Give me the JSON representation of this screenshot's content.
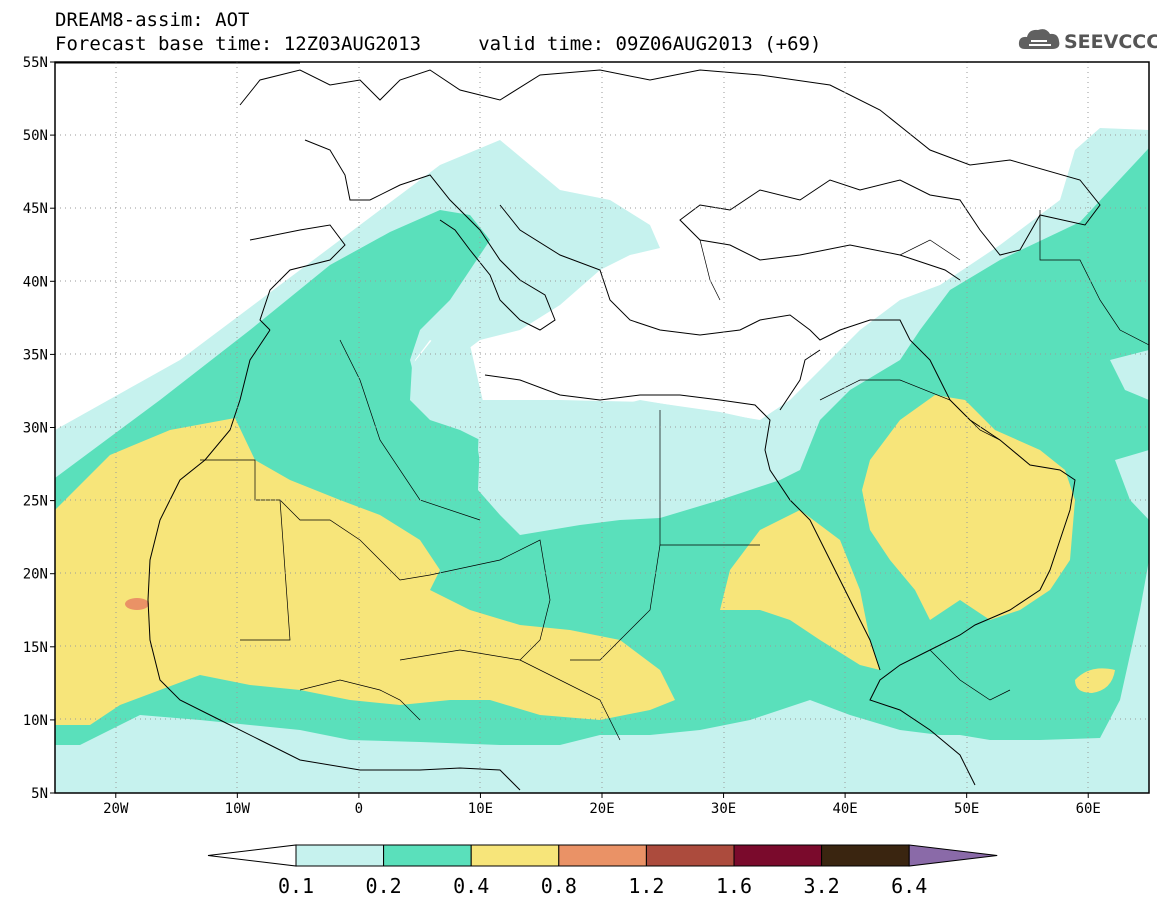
{
  "header": {
    "model_line": "DREAM8-assim: AOT",
    "time_line": "Forecast base time: 12Z03AUG2013     valid time: 09Z06AUG2013 (+69)"
  },
  "logo": {
    "text": "SEEVCCC",
    "icon": "cloud-icon"
  },
  "map": {
    "lat_labels": [
      "55N",
      "50N",
      "45N",
      "40N",
      "35N",
      "30N",
      "25N",
      "20N",
      "15N",
      "10N",
      "5N"
    ],
    "lon_labels": [
      "20W",
      "10W",
      "0",
      "10E",
      "20E",
      "30E",
      "40E",
      "50E",
      "60E"
    ],
    "lat_range": [
      5,
      55
    ],
    "lon_range": [
      -25,
      65
    ],
    "grid": "dotted"
  },
  "colorbar": {
    "labels": [
      "0.1",
      "0.2",
      "0.4",
      "0.8",
      "1.2",
      "1.6",
      "3.2",
      "6.4"
    ],
    "colors": [
      "#ffffff",
      "#c6f2ee",
      "#5ae0bb",
      "#f7e57a",
      "#ea9266",
      "#ac4b3d",
      "#7a0a2c",
      "#3a2510",
      "#8a6aa8"
    ]
  },
  "colors": {
    "aot_01_02": "#c6f2ee",
    "aot_02_04": "#5ae0bb",
    "aot_04_08": "#f7e57a",
    "aot_08_12": "#ea9266"
  }
}
